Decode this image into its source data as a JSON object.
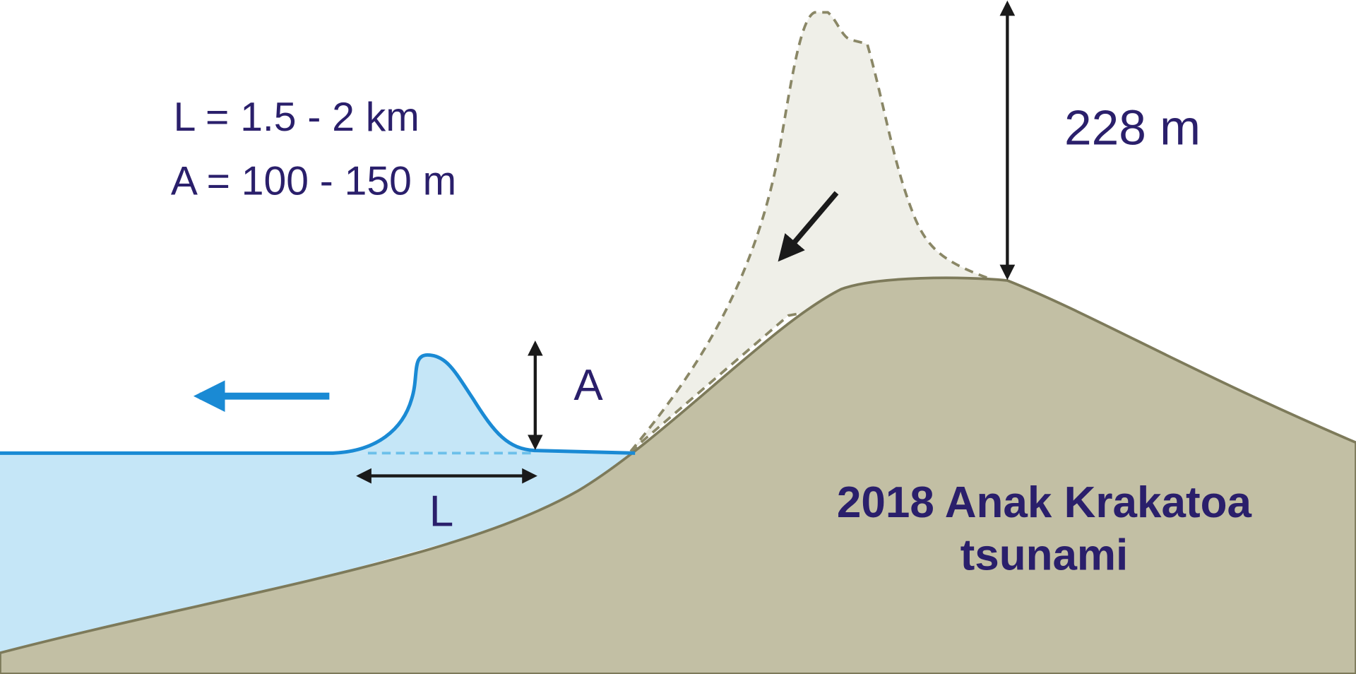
{
  "labels": {
    "wavelength": "L = 1.5 - 2 km",
    "amplitude": "A = 100 - 150 m",
    "height": "228 m",
    "a_marker": "A",
    "l_marker": "L",
    "title_line1": "2018 Anak Krakatoa",
    "title_line2": "tsunami"
  }
}
